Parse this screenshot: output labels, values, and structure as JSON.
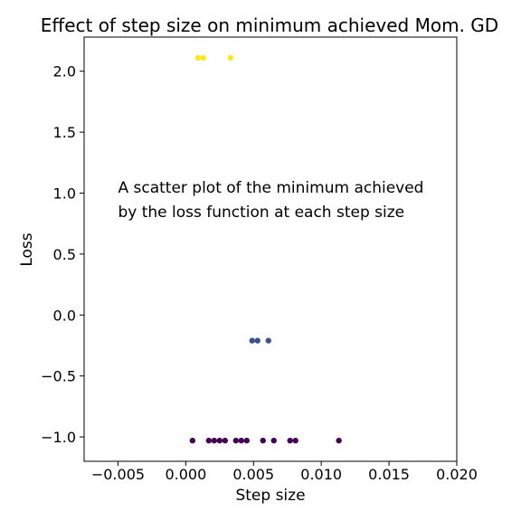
{
  "chart_data": {
    "type": "scatter",
    "title": "Effect of step size on minimum achieved Mom. GD",
    "xlabel": "Step size",
    "ylabel": "Loss",
    "xlim": [
      -0.0075,
      0.02
    ],
    "ylim": [
      -1.2,
      2.28
    ],
    "xticks": [
      -0.005,
      0.0,
      0.005,
      0.01,
      0.015,
      0.02
    ],
    "xtick_labels": [
      "−0.005",
      "0.000",
      "0.005",
      "0.010",
      "0.015",
      "0.020"
    ],
    "yticks": [
      -1.0,
      -0.5,
      0.0,
      0.5,
      1.0,
      1.5,
      2.0
    ],
    "ytick_labels": [
      "−1.0",
      "−0.5",
      "0.0",
      "0.5",
      "1.0",
      "1.5",
      "2.0"
    ],
    "grid": false,
    "colormap": "viridis",
    "annotation": {
      "lines": [
        "A scatter plot of the minimum achieved",
        "by the loss function at each step size"
      ],
      "x": -0.005,
      "y": 1.0
    },
    "points": [
      {
        "x": 0.0009,
        "y": 2.11,
        "color": "#fde725"
      },
      {
        "x": 0.0013,
        "y": 2.11,
        "color": "#fde725"
      },
      {
        "x": 0.0033,
        "y": 2.11,
        "color": "#fde725"
      },
      {
        "x": 0.0049,
        "y": -0.21,
        "color": "#3b528b"
      },
      {
        "x": 0.0053,
        "y": -0.21,
        "color": "#3b528b"
      },
      {
        "x": 0.0061,
        "y": -0.21,
        "color": "#3b528b"
      },
      {
        "x": 0.0005,
        "y": -1.03,
        "color": "#440154"
      },
      {
        "x": 0.0017,
        "y": -1.03,
        "color": "#440154"
      },
      {
        "x": 0.0021,
        "y": -1.03,
        "color": "#440154"
      },
      {
        "x": 0.0025,
        "y": -1.03,
        "color": "#440154"
      },
      {
        "x": 0.0029,
        "y": -1.03,
        "color": "#440154"
      },
      {
        "x": 0.0037,
        "y": -1.03,
        "color": "#440154"
      },
      {
        "x": 0.0041,
        "y": -1.03,
        "color": "#440154"
      },
      {
        "x": 0.0045,
        "y": -1.03,
        "color": "#440154"
      },
      {
        "x": 0.0057,
        "y": -1.03,
        "color": "#440154"
      },
      {
        "x": 0.0065,
        "y": -1.03,
        "color": "#440154"
      },
      {
        "x": 0.0077,
        "y": -1.03,
        "color": "#440154"
      },
      {
        "x": 0.0081,
        "y": -1.03,
        "color": "#440154"
      },
      {
        "x": 0.0113,
        "y": -1.03,
        "color": "#440154"
      }
    ]
  }
}
